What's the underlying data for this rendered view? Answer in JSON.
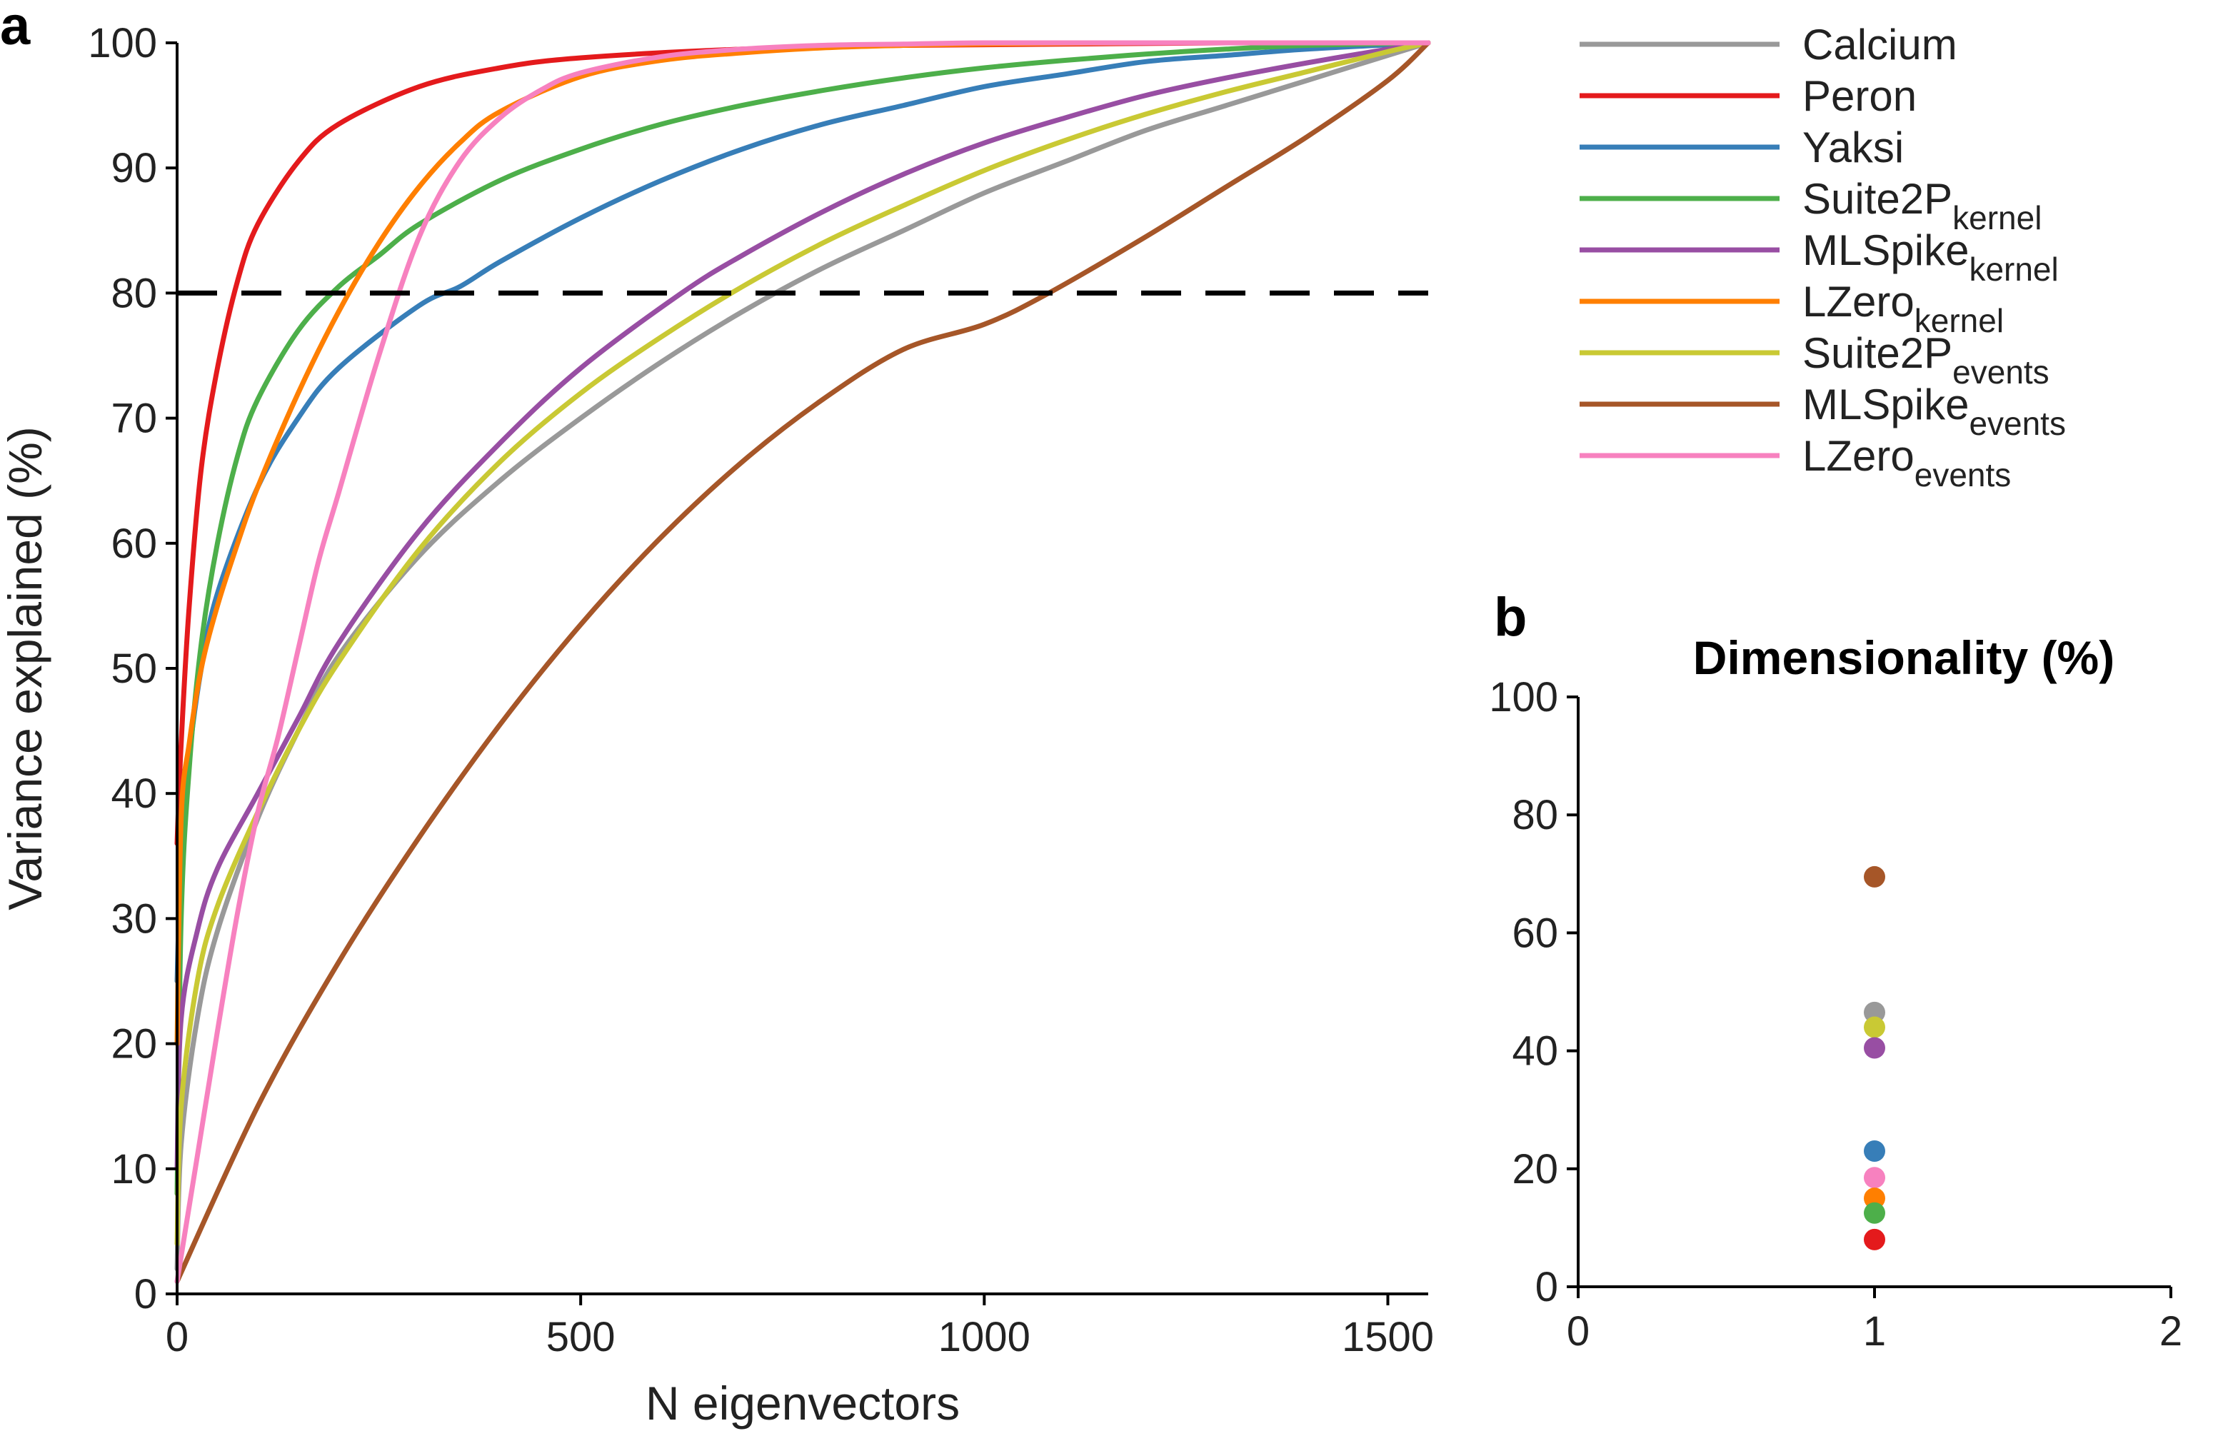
{
  "panel_labels": {
    "a": "a",
    "b": "b"
  },
  "chart_data": [
    {
      "panel": "a",
      "type": "line",
      "title": "",
      "xlabel": "N eigenvectors",
      "ylabel": "Variance explained (%)",
      "xlim": [
        0,
        1550
      ],
      "ylim": [
        0,
        100
      ],
      "xticks": [
        0,
        500,
        1000,
        1500
      ],
      "yticks": [
        0,
        10,
        20,
        30,
        40,
        50,
        60,
        70,
        80,
        90,
        100
      ],
      "grid": false,
      "legend_placement": "right",
      "threshold": {
        "y": 80,
        "style": "dashed",
        "color": "#000000"
      },
      "series": [
        {
          "name": "Calcium",
          "sub": "",
          "color": "#999999",
          "x": [
            0,
            5,
            25,
            50,
            100,
            150,
            200,
            300,
            400,
            500,
            600,
            700,
            800,
            900,
            1000,
            1100,
            1200,
            1300,
            1400,
            1500,
            1550
          ],
          "values": [
            2,
            12,
            22,
            29,
            38,
            45,
            51,
            59,
            65,
            70,
            74.5,
            78.5,
            82,
            85,
            88,
            90.5,
            93,
            95,
            97,
            99,
            100
          ]
        },
        {
          "name": "Peron",
          "sub": "",
          "color": "#e41a1c",
          "x": [
            0,
            5,
            15,
            30,
            50,
            75,
            100,
            150,
            200,
            300,
            400,
            500,
            700,
            900,
            1100,
            1300,
            1550
          ],
          "values": [
            36,
            44,
            55,
            66,
            74,
            81,
            85.5,
            90.5,
            93.5,
            96.5,
            98,
            98.8,
            99.5,
            99.8,
            99.9,
            100,
            100
          ]
        },
        {
          "name": "Yaksi",
          "sub": "",
          "color": "#377eb8",
          "x": [
            0,
            5,
            15,
            30,
            50,
            100,
            150,
            200,
            300,
            350,
            400,
            500,
            600,
            700,
            800,
            900,
            1000,
            1100,
            1200,
            1300,
            1400,
            1550
          ],
          "values": [
            25,
            35,
            43,
            50,
            56,
            64.5,
            70,
            74,
            79,
            80.5,
            82.5,
            86,
            89,
            91.5,
            93.5,
            95,
            96.5,
            97.5,
            98.5,
            99,
            99.5,
            100
          ]
        },
        {
          "name": "Suite2P",
          "sub": "kernel",
          "color": "#4daf4a",
          "x": [
            0,
            5,
            15,
            30,
            50,
            75,
            100,
            150,
            200,
            250,
            300,
            400,
            500,
            600,
            700,
            800,
            900,
            1000,
            1100,
            1200,
            1300,
            1400,
            1550
          ],
          "values": [
            8,
            30,
            42,
            52,
            60,
            67,
            71.5,
            77,
            80.5,
            83,
            85.5,
            89,
            91.5,
            93.5,
            95,
            96.2,
            97.2,
            98,
            98.6,
            99.1,
            99.5,
            99.8,
            100
          ]
        },
        {
          "name": "MLSpike",
          "sub": "kernel",
          "color": "#984ea3",
          "x": [
            0,
            5,
            25,
            50,
            100,
            150,
            200,
            300,
            400,
            500,
            625,
            700,
            800,
            900,
            1000,
            1100,
            1200,
            1300,
            1400,
            1500,
            1550
          ],
          "values": [
            10,
            22,
            29,
            34,
            40,
            46,
            52,
            61,
            68,
            74,
            80,
            83,
            86.5,
            89.5,
            92,
            94,
            95.8,
            97.2,
            98.4,
            99.5,
            100
          ]
        },
        {
          "name": "LZero",
          "sub": "kernel",
          "color": "#ff7f00",
          "x": [
            0,
            5,
            15,
            30,
            50,
            75,
            100,
            150,
            200,
            250,
            300,
            350,
            400,
            500,
            600,
            700,
            800,
            900,
            1000,
            1200,
            1400,
            1550
          ],
          "values": [
            20,
            38,
            44,
            50,
            55,
            60,
            64.5,
            72,
            78.5,
            84,
            88.5,
            92,
            94.5,
            97.3,
            98.6,
            99.2,
            99.6,
            99.8,
            99.9,
            100,
            100,
            100
          ]
        },
        {
          "name": "Suite2P",
          "sub": "events",
          "color": "#c9c934",
          "x": [
            0,
            5,
            25,
            50,
            100,
            150,
            200,
            300,
            400,
            500,
            600,
            700,
            800,
            900,
            1000,
            1100,
            1200,
            1300,
            1400,
            1500,
            1550
          ],
          "values": [
            4,
            15,
            25,
            31,
            38.5,
            45,
            50.5,
            59.5,
            66.5,
            72,
            76.5,
            80.5,
            84,
            87,
            89.8,
            92.2,
            94.3,
            96.1,
            97.7,
            99.3,
            100
          ]
        },
        {
          "name": "MLSpike",
          "sub": "events",
          "color": "#a65628",
          "x": [
            0,
            100,
            200,
            300,
            400,
            500,
            600,
            700,
            800,
            900,
            1000,
            1080,
            1200,
            1300,
            1400,
            1500,
            1550
          ],
          "values": [
            1,
            15,
            26.5,
            36.5,
            45.5,
            53.5,
            60.5,
            66.5,
            71.5,
            75.5,
            77.5,
            80,
            84.5,
            88.5,
            92.5,
            97,
            100
          ]
        },
        {
          "name": "LZero",
          "sub": "events",
          "color": "#f781bf",
          "x": [
            0,
            25,
            50,
            75,
            100,
            125,
            150,
            175,
            200,
            250,
            300,
            350,
            400,
            450,
            500,
            600,
            700,
            800,
            900,
            1000,
            1200,
            1400,
            1550
          ],
          "values": [
            1,
            11,
            21,
            30.5,
            38.5,
            44.5,
            51.5,
            58.5,
            64,
            75,
            84.5,
            90.5,
            94,
            96.2,
            97.6,
            98.9,
            99.5,
            99.8,
            99.9,
            100,
            100,
            100,
            100
          ]
        }
      ]
    },
    {
      "panel": "b",
      "type": "scatter",
      "title": "Dimensionality (%)",
      "xlabel": "",
      "ylabel": "",
      "xlim": [
        0,
        2
      ],
      "ylim": [
        0,
        100
      ],
      "xticks": [
        0,
        1,
        2
      ],
      "yticks": [
        0,
        20,
        40,
        60,
        80,
        100
      ],
      "grid": false,
      "points": [
        {
          "x": 1,
          "y": 69.5,
          "color": "#a65628"
        },
        {
          "x": 1,
          "y": 46.5,
          "color": "#999999"
        },
        {
          "x": 1,
          "y": 44,
          "color": "#c9c934"
        },
        {
          "x": 1,
          "y": 40.5,
          "color": "#984ea3"
        },
        {
          "x": 1,
          "y": 23,
          "color": "#377eb8"
        },
        {
          "x": 1,
          "y": 18.5,
          "color": "#f781bf"
        },
        {
          "x": 1,
          "y": 15,
          "color": "#ff7f00"
        },
        {
          "x": 1,
          "y": 12.5,
          "color": "#4daf4a"
        },
        {
          "x": 1,
          "y": 8,
          "color": "#e41a1c"
        }
      ]
    }
  ]
}
